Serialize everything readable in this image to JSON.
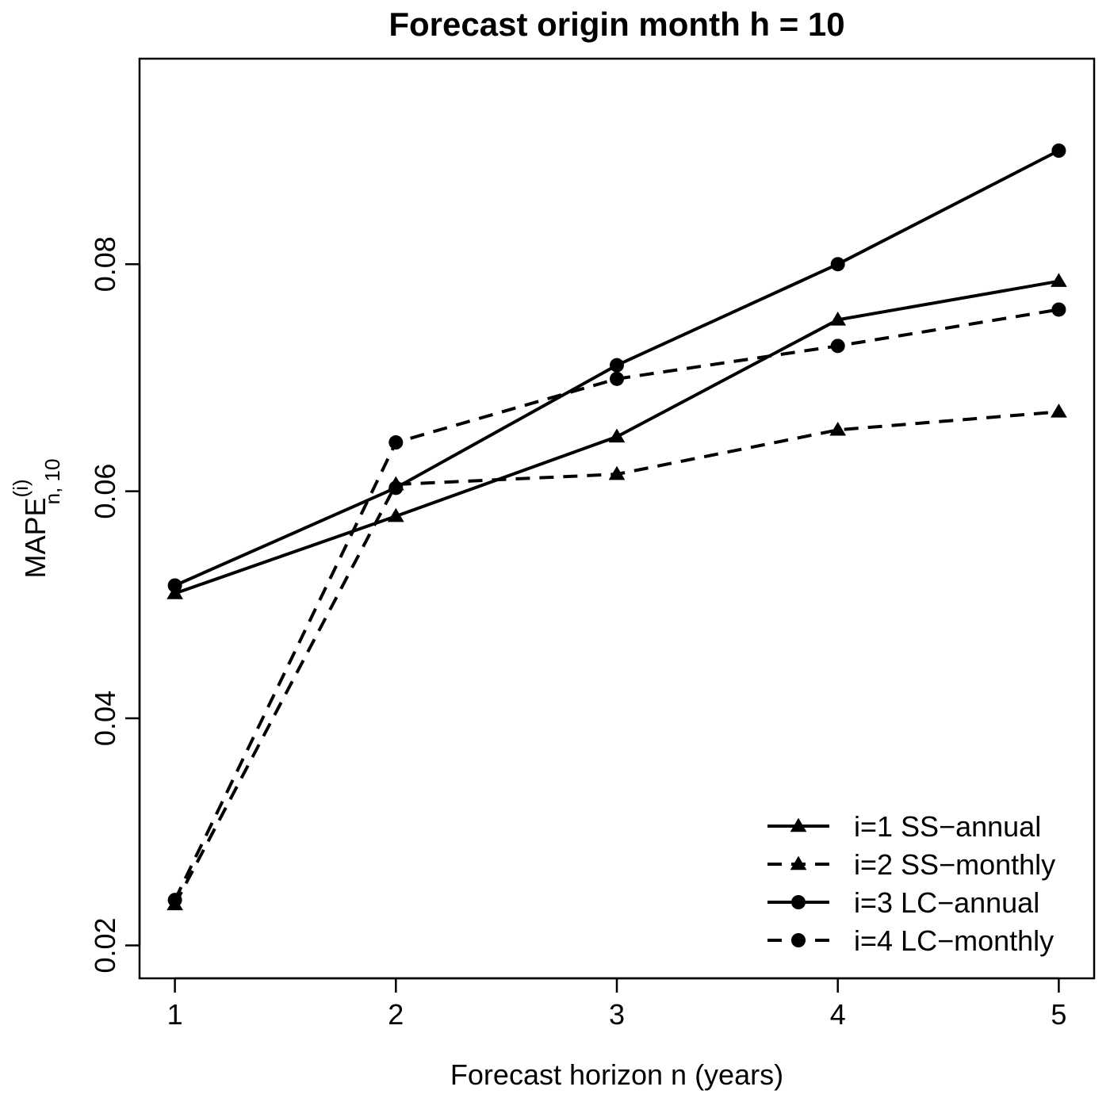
{
  "chart_data": {
    "type": "line",
    "title": "Forecast origin month h = 10",
    "xlabel": "Forecast horizon n (years)",
    "ylabel": {
      "base": "MAPE",
      "superscript": "(i)",
      "subscript": "n, 10"
    },
    "x": [
      1,
      2,
      3,
      4,
      5
    ],
    "xticks": [
      "1",
      "2",
      "3",
      "4",
      "5"
    ],
    "yticks": [
      "0.02",
      "0.04",
      "0.06",
      "0.08"
    ],
    "ytick_values": [
      0.02,
      0.04,
      0.06,
      0.08
    ],
    "xlim": [
      0.84,
      5.16
    ],
    "ylim": [
      0.0171,
      0.0981
    ],
    "legend_position": "bottom-right",
    "series": [
      {
        "name": "i=1 SS−annual",
        "line": "solid",
        "marker": "triangle",
        "values": [
          0.051,
          0.0578,
          0.0648,
          0.0751,
          0.0785
        ]
      },
      {
        "name": "i=2 SS−monthly",
        "line": "dashed",
        "marker": "triangle",
        "values": [
          0.0236,
          0.0606,
          0.0615,
          0.0654,
          0.067
        ]
      },
      {
        "name": "i=3 LC−annual",
        "line": "solid",
        "marker": "circle",
        "values": [
          0.0517,
          0.0603,
          0.0711,
          0.08,
          0.09
        ]
      },
      {
        "name": "i=4 LC−monthly",
        "line": "dashed",
        "marker": "circle",
        "values": [
          0.024,
          0.0643,
          0.0699,
          0.0728,
          0.076
        ]
      }
    ]
  }
}
